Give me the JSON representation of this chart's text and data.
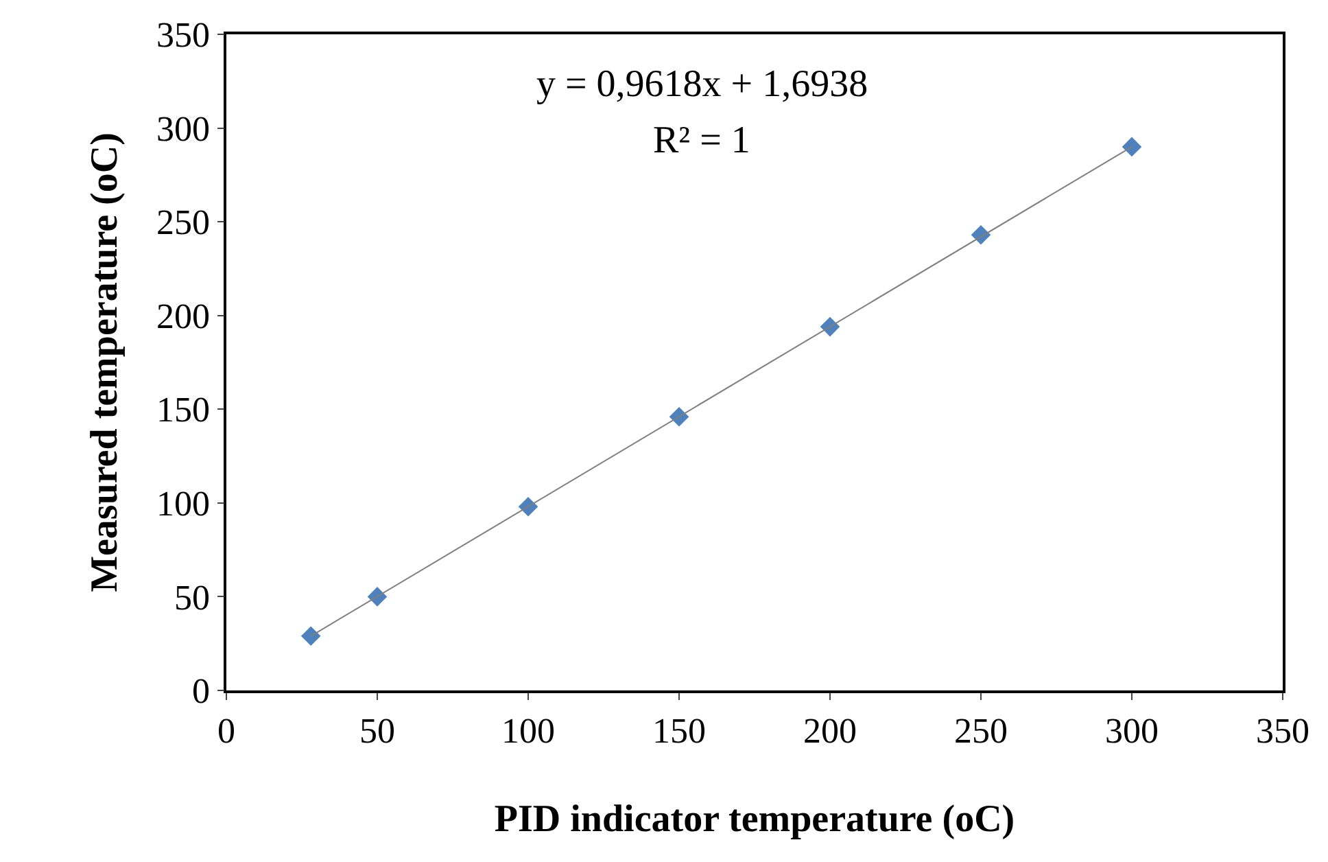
{
  "chart_data": {
    "type": "scatter",
    "xlabel": "PID indicator temperature (oC)",
    "ylabel": "Measured temperature (oC)",
    "annotations": [
      "y = 0,9618x + 1,6938",
      "R² = 1"
    ],
    "x": [
      28,
      50,
      100,
      150,
      200,
      250,
      300
    ],
    "series": [
      {
        "color": "#4f81bd",
        "marker": "diamond",
        "values": [
          29,
          50,
          98,
          146,
          194,
          243,
          290
        ]
      },
      {
        "type": "line",
        "color": "#7f7f7f",
        "x": [
          28,
          300
        ],
        "values": [
          29,
          290
        ]
      }
    ],
    "xlim": [
      0,
      350
    ],
    "xticks": [
      0,
      50,
      100,
      150,
      200,
      250,
      300,
      350
    ],
    "ylim": [
      0,
      350
    ],
    "yticks": [
      0,
      50,
      100,
      150,
      200,
      250,
      300,
      350
    ]
  }
}
